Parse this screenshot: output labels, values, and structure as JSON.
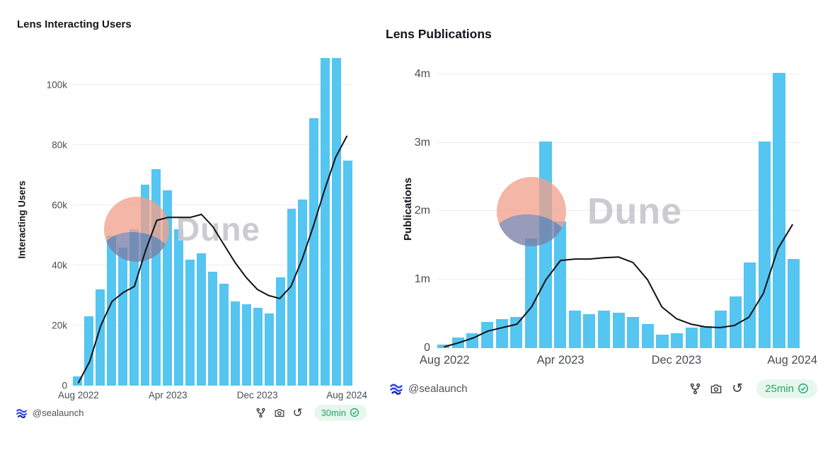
{
  "watermark": {
    "label": "Dune"
  },
  "colors": {
    "bar": "#55C5F1",
    "line": "#111111",
    "grid": "#EDEDF1",
    "title_text": "#15151C",
    "tick_text": "#4A4D55",
    "badge_bg": "#E7F7EE",
    "badge_text": "#27A567",
    "logo_blue": "#2E45F0",
    "watermark_circle": "#F1A28E",
    "watermark_wave": "#6F7BA9",
    "watermark_text": "#C9C9CF"
  },
  "icons": {
    "fork": "fork-icon",
    "camera": "camera-icon",
    "refresh": "refresh-icon",
    "refresh_glyph": "↺",
    "check": "check-circle-icon",
    "logo": "sealaunch-logo-icon"
  },
  "chart_data": [
    {
      "type": "bar",
      "title": "Lens Interacting Users",
      "xlabel": "",
      "ylabel": "Interacting Users",
      "ylim": [
        0,
        110000
      ],
      "grid": true,
      "categories": [
        "Aug 2022",
        "Sep 2022",
        "Oct 2022",
        "Nov 2022",
        "Dec 2022",
        "Jan 2023",
        "Feb 2023",
        "Mar 2023",
        "Apr 2023",
        "May 2023",
        "Jun 2023",
        "Jul 2023",
        "Aug 2023",
        "Sep 2023",
        "Oct 2023",
        "Nov 2023",
        "Dec 2023",
        "Jan 2024",
        "Feb 2024",
        "Mar 2024",
        "Apr 2024",
        "May 2024",
        "Jun 2024",
        "Jul 2024",
        "Aug 2024"
      ],
      "series": [
        {
          "name": "Interacting Users",
          "type": "bar",
          "values": [
            3000,
            23000,
            32000,
            50000,
            46000,
            52000,
            67000,
            72000,
            65000,
            52000,
            42000,
            44000,
            38000,
            34000,
            28000,
            27000,
            26000,
            24000,
            36000,
            59000,
            62000,
            89000,
            109000,
            109000,
            75000
          ]
        },
        {
          "name": "Moving Average",
          "type": "line",
          "values": [
            1000,
            8000,
            20000,
            28000,
            31000,
            33000,
            45000,
            55000,
            56000,
            56000,
            56000,
            57000,
            53000,
            47000,
            41000,
            36000,
            32000,
            30000,
            29000,
            33000,
            42000,
            53000,
            65000,
            76000,
            83000
          ]
        }
      ],
      "y_ticks": [
        {
          "v": 0,
          "label": "0"
        },
        {
          "v": 20000,
          "label": "20k"
        },
        {
          "v": 40000,
          "label": "40k"
        },
        {
          "v": 60000,
          "label": "60k"
        },
        {
          "v": 80000,
          "label": "80k"
        },
        {
          "v": 100000,
          "label": "100k"
        }
      ],
      "x_ticks": [
        {
          "i": 0,
          "label": "Aug 2022"
        },
        {
          "i": 8,
          "label": "Apr 2023"
        },
        {
          "i": 16,
          "label": "Dec 2023"
        },
        {
          "i": 24,
          "label": "Aug 2024"
        }
      ],
      "footer": {
        "handle": "@sealaunch",
        "freshness": "30min"
      }
    },
    {
      "type": "bar",
      "title": "Lens Publications",
      "xlabel": "",
      "ylabel": "Publications",
      "ylim": [
        0,
        4100000
      ],
      "grid": true,
      "categories": [
        "Aug 2022",
        "Sep 2022",
        "Oct 2022",
        "Nov 2022",
        "Dec 2022",
        "Jan 2023",
        "Feb 2023",
        "Mar 2023",
        "Apr 2023",
        "May 2023",
        "Jun 2023",
        "Jul 2023",
        "Aug 2023",
        "Sep 2023",
        "Oct 2023",
        "Nov 2023",
        "Dec 2023",
        "Jan 2024",
        "Feb 2024",
        "Mar 2024",
        "Apr 2024",
        "May 2024",
        "Jun 2024",
        "Jul 2024",
        "Aug 2024"
      ],
      "series": [
        {
          "name": "Publications",
          "type": "bar",
          "values": [
            50000,
            150000,
            220000,
            380000,
            420000,
            450000,
            1600000,
            3020000,
            1850000,
            550000,
            500000,
            550000,
            520000,
            450000,
            350000,
            200000,
            220000,
            300000,
            320000,
            550000,
            750000,
            1250000,
            3020000,
            4020000,
            1300000
          ]
        },
        {
          "name": "Moving Average",
          "type": "line",
          "values": [
            20000,
            80000,
            150000,
            250000,
            300000,
            350000,
            600000,
            1000000,
            1280000,
            1300000,
            1300000,
            1320000,
            1330000,
            1250000,
            1000000,
            600000,
            430000,
            350000,
            310000,
            300000,
            330000,
            450000,
            800000,
            1450000,
            1800000
          ]
        }
      ],
      "y_ticks": [
        {
          "v": 0,
          "label": "0"
        },
        {
          "v": 1000000,
          "label": "1m"
        },
        {
          "v": 2000000,
          "label": "2m"
        },
        {
          "v": 3000000,
          "label": "3m"
        },
        {
          "v": 4000000,
          "label": "4m"
        }
      ],
      "x_ticks": [
        {
          "i": 0,
          "label": "Aug 2022"
        },
        {
          "i": 8,
          "label": "Apr 2023"
        },
        {
          "i": 16,
          "label": "Dec 2023"
        },
        {
          "i": 24,
          "label": "Aug 2024"
        }
      ],
      "footer": {
        "handle": "@sealaunch",
        "freshness": "25min"
      }
    }
  ]
}
